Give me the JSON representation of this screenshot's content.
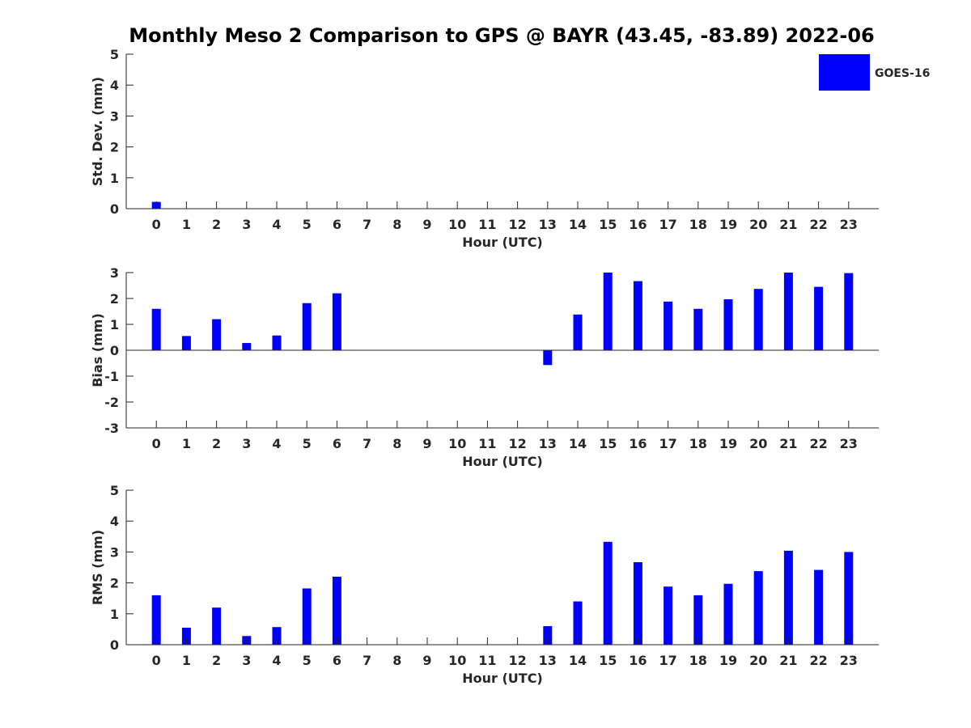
{
  "title": "Monthly Meso 2 Comparison to GPS @ BAYR (43.45, -83.89) 2022-06",
  "legend": {
    "label": "GOES-16",
    "color": "#0000ff",
    "position": "top-right"
  },
  "chart_data": [
    {
      "type": "bar",
      "name": "std-dev",
      "xlabel": "Hour (UTC)",
      "ylabel": "Std. Dev. (mm)",
      "categories": [
        "0",
        "1",
        "2",
        "3",
        "4",
        "5",
        "6",
        "7",
        "8",
        "9",
        "10",
        "11",
        "12",
        "13",
        "14",
        "15",
        "16",
        "17",
        "18",
        "19",
        "20",
        "21",
        "22",
        "23"
      ],
      "series": [
        {
          "name": "GOES-16",
          "values": [
            0.22,
            0,
            0,
            0,
            0,
            0,
            0,
            0,
            0,
            0,
            0,
            0,
            0,
            0,
            0,
            0,
            0,
            0,
            0,
            0,
            0,
            0,
            0,
            0
          ]
        }
      ],
      "ylim": [
        0,
        5
      ],
      "yticks": [
        "0",
        "1",
        "2",
        "3",
        "4",
        "5"
      ],
      "grid": false
    },
    {
      "type": "bar",
      "name": "bias",
      "xlabel": "Hour (UTC)",
      "ylabel": "Bias (mm)",
      "categories": [
        "0",
        "1",
        "2",
        "3",
        "4",
        "5",
        "6",
        "7",
        "8",
        "9",
        "10",
        "11",
        "12",
        "13",
        "14",
        "15",
        "16",
        "17",
        "18",
        "19",
        "20",
        "21",
        "22",
        "23"
      ],
      "series": [
        {
          "name": "GOES-16",
          "values": [
            1.6,
            0.55,
            1.2,
            0.28,
            0.57,
            1.82,
            2.2,
            0,
            0,
            0,
            0,
            0,
            0,
            -0.57,
            1.38,
            3.0,
            2.67,
            1.88,
            1.6,
            1.97,
            2.37,
            3.0,
            2.45,
            2.98
          ]
        }
      ],
      "ylim": [
        -3,
        3
      ],
      "yticks": [
        "-3",
        "-2",
        "-1",
        "0",
        "1",
        "2",
        "3"
      ],
      "grid": false
    },
    {
      "type": "bar",
      "name": "rms",
      "xlabel": "Hour (UTC)",
      "ylabel": "RMS (mm)",
      "categories": [
        "0",
        "1",
        "2",
        "3",
        "4",
        "5",
        "6",
        "7",
        "8",
        "9",
        "10",
        "11",
        "12",
        "13",
        "14",
        "15",
        "16",
        "17",
        "18",
        "19",
        "20",
        "21",
        "22",
        "23"
      ],
      "series": [
        {
          "name": "GOES-16",
          "values": [
            1.6,
            0.55,
            1.2,
            0.28,
            0.57,
            1.82,
            2.2,
            0,
            0,
            0,
            0,
            0,
            0,
            0.6,
            1.4,
            3.33,
            2.67,
            1.88,
            1.6,
            1.97,
            2.38,
            3.04,
            2.42,
            3.0
          ]
        }
      ],
      "ylim": [
        0,
        5
      ],
      "yticks": [
        "0",
        "1",
        "2",
        "3",
        "4",
        "5"
      ],
      "grid": false
    }
  ]
}
